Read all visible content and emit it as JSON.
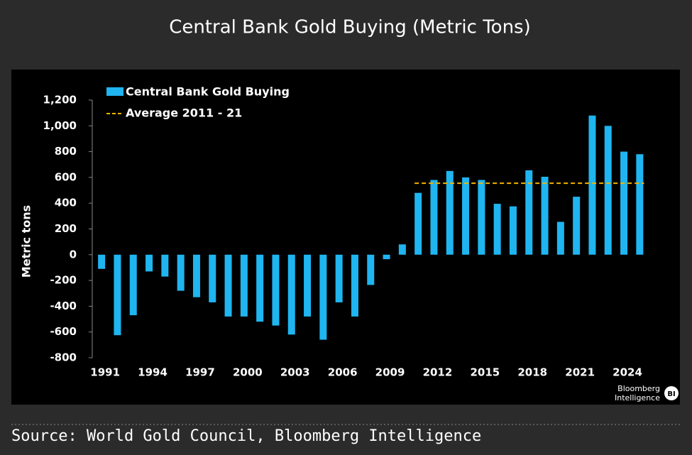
{
  "chart_data": {
    "type": "bar",
    "title": "Central Bank Gold Buying (Metric Tons)",
    "ylabel": "Metric tons",
    "source": "Source: World Gold Council, Bloomberg Intelligence",
    "branding": [
      "Bloomberg",
      "Intelligence",
      "BI"
    ],
    "categories": [
      "1991",
      null,
      null,
      "1994",
      null,
      null,
      "1997",
      null,
      null,
      "2000",
      null,
      null,
      "2003",
      null,
      null,
      "2006",
      null,
      null,
      "2009",
      null,
      null,
      "2012",
      null,
      null,
      "2015",
      null,
      null,
      "2018",
      null,
      null,
      "2021",
      null,
      null,
      "2024",
      null
    ],
    "series": [
      {
        "name": "Central Bank Gold Buying",
        "color": "#1fb5f0",
        "values": [
          -110,
          -625,
          -470,
          -130,
          -170,
          -280,
          -330,
          -370,
          -480,
          -480,
          -520,
          -550,
          -620,
          -480,
          -660,
          -370,
          -480,
          -235,
          -35,
          80,
          480,
          580,
          650,
          600,
          580,
          395,
          375,
          655,
          605,
          255,
          450,
          1080,
          1000,
          800,
          780
        ]
      }
    ],
    "average": {
      "name": "Average 2011 - 21",
      "color": "#f5b400",
      "value": 555
    },
    "ylim": [
      -800,
      1200
    ],
    "yticks": [
      -800,
      -600,
      -400,
      -200,
      0,
      200,
      400,
      600,
      800,
      {
        "value": 1000,
        "label": "1,000"
      },
      {
        "value": 1200,
        "label": "1,200"
      }
    ],
    "negative_tick_color": "#ff1a1a"
  }
}
